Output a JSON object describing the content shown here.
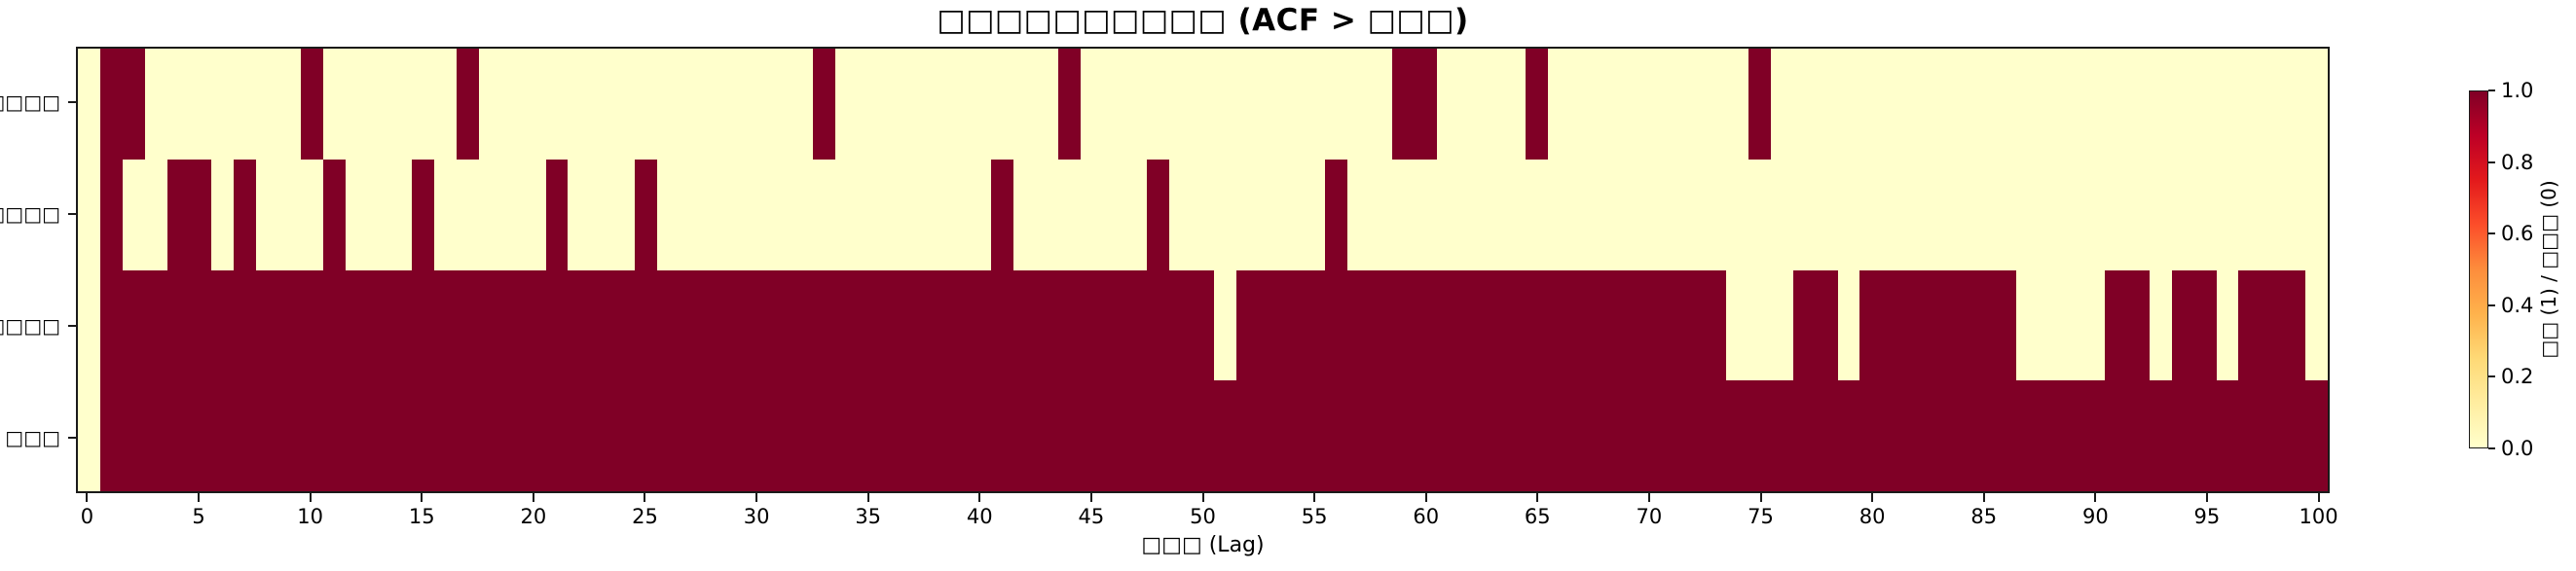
{
  "figure": {
    "title": "□□□□□□□□□□ (ACF > □□□)",
    "xlabel": "□□□ (Lag)",
    "background_color": "#ffffff",
    "spine_color": "#1a1a1a"
  },
  "axes": {
    "x_ticks": [
      "0",
      "5",
      "10",
      "15",
      "20",
      "25",
      "30",
      "35",
      "40",
      "45",
      "50",
      "55",
      "60",
      "65",
      "70",
      "75",
      "80",
      "85",
      "90",
      "95",
      "100"
    ],
    "y_labels": [
      "□□□□□",
      "□□□□□",
      "□□□□□",
      "□□□"
    ]
  },
  "colorbar": {
    "ticks": [
      "1.0",
      "0.8",
      "0.6",
      "0.4",
      "0.2",
      "0.0"
    ],
    "label": "□□ (1) / □□□ (0)",
    "gradient_top_to_bottom": [
      "#800026",
      "#bd0026",
      "#e31a1c",
      "#fc4e2a",
      "#fd8d3c",
      "#feb24c",
      "#fed976",
      "#ffeda0",
      "#ffffcc"
    ]
  },
  "chart_data": {
    "type": "heatmap",
    "title": "□□□□□□□□□□ (ACF > □□□)",
    "xlabel": "□□□ (Lag)",
    "x_range": [
      0,
      100
    ],
    "x_tick_step": 5,
    "colormap": "YlOrRd",
    "legend_meaning": "1 = dark red, 0 = pale yellow",
    "value_colors": {
      "1": "#800026",
      "0": "#ffffcc"
    },
    "rows": [
      {
        "label": "□□□□□",
        "values": [
          0,
          1,
          1,
          0,
          0,
          0,
          0,
          0,
          0,
          0,
          1,
          0,
          0,
          0,
          0,
          0,
          0,
          1,
          0,
          0,
          0,
          0,
          0,
          0,
          0,
          0,
          0,
          0,
          0,
          0,
          0,
          0,
          0,
          1,
          0,
          0,
          0,
          0,
          0,
          0,
          0,
          0,
          0,
          0,
          1,
          0,
          0,
          0,
          0,
          0,
          0,
          0,
          0,
          0,
          0,
          0,
          0,
          0,
          0,
          1,
          1,
          0,
          0,
          0,
          0,
          1,
          0,
          0,
          0,
          0,
          0,
          0,
          0,
          0,
          0,
          1,
          0,
          0,
          0,
          0,
          0,
          0,
          0,
          0,
          0,
          0,
          0,
          0,
          0,
          0,
          0,
          0,
          0,
          0,
          0,
          0,
          0,
          0,
          0,
          0,
          0
        ]
      },
      {
        "label": "□□□□□",
        "values": [
          0,
          1,
          0,
          0,
          1,
          1,
          0,
          1,
          0,
          0,
          0,
          1,
          0,
          0,
          0,
          1,
          0,
          0,
          0,
          0,
          0,
          1,
          0,
          0,
          0,
          1,
          0,
          0,
          0,
          0,
          0,
          0,
          0,
          0,
          0,
          0,
          0,
          0,
          0,
          0,
          0,
          1,
          0,
          0,
          0,
          0,
          0,
          0,
          1,
          0,
          0,
          0,
          0,
          0,
          0,
          0,
          1,
          0,
          0,
          0,
          0,
          0,
          0,
          0,
          0,
          0,
          0,
          0,
          0,
          0,
          0,
          0,
          0,
          0,
          0,
          0,
          0,
          0,
          0,
          0,
          0,
          0,
          0,
          0,
          0,
          0,
          0,
          0,
          0,
          0,
          0,
          0,
          0,
          0,
          0,
          0,
          0,
          0,
          0,
          0,
          0
        ]
      },
      {
        "label": "□□□□□",
        "values": [
          0,
          1,
          1,
          1,
          1,
          1,
          1,
          1,
          1,
          1,
          1,
          1,
          1,
          1,
          1,
          1,
          1,
          1,
          1,
          1,
          1,
          1,
          1,
          1,
          1,
          1,
          1,
          1,
          1,
          1,
          1,
          1,
          1,
          1,
          1,
          1,
          1,
          1,
          1,
          1,
          1,
          1,
          1,
          1,
          1,
          1,
          1,
          1,
          1,
          1,
          1,
          0,
          1,
          1,
          1,
          1,
          1,
          1,
          1,
          1,
          1,
          1,
          1,
          1,
          1,
          1,
          1,
          1,
          1,
          1,
          1,
          1,
          1,
          1,
          0,
          0,
          0,
          1,
          1,
          0,
          1,
          1,
          1,
          1,
          1,
          1,
          1,
          0,
          0,
          0,
          0,
          1,
          1,
          0,
          1,
          1,
          0,
          1,
          1,
          1,
          0
        ]
      },
      {
        "label": "□□□",
        "values": [
          0,
          1,
          1,
          1,
          1,
          1,
          1,
          1,
          1,
          1,
          1,
          1,
          1,
          1,
          1,
          1,
          1,
          1,
          1,
          1,
          1,
          1,
          1,
          1,
          1,
          1,
          1,
          1,
          1,
          1,
          1,
          1,
          1,
          1,
          1,
          1,
          1,
          1,
          1,
          1,
          1,
          1,
          1,
          1,
          1,
          1,
          1,
          1,
          1,
          1,
          1,
          1,
          1,
          1,
          1,
          1,
          1,
          1,
          1,
          1,
          1,
          1,
          1,
          1,
          1,
          1,
          1,
          1,
          1,
          1,
          1,
          1,
          1,
          1,
          1,
          1,
          1,
          1,
          1,
          1,
          1,
          1,
          1,
          1,
          1,
          1,
          1,
          1,
          1,
          1,
          1,
          1,
          1,
          1,
          1,
          1,
          1,
          1,
          1,
          1,
          1
        ]
      }
    ]
  }
}
